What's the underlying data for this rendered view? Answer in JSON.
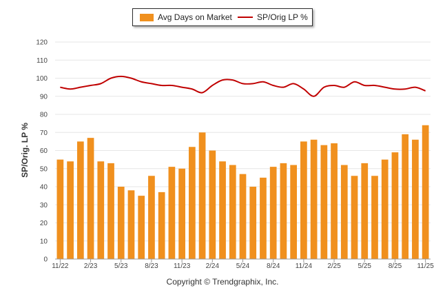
{
  "copyright": "Copyright © Trendgraphix, Inc.",
  "chart_data": {
    "type": "bar",
    "title": "",
    "xlabel": "",
    "ylabel": "SP/Orig. LP %",
    "ylim": [
      0,
      120
    ],
    "yticks": [
      0,
      10,
      20,
      30,
      40,
      50,
      60,
      70,
      80,
      90,
      100,
      110,
      120
    ],
    "grid": true,
    "legend_placement": "top-center",
    "x_tick_labels": [
      "11/22",
      "2/23",
      "5/23",
      "8/23",
      "11/23",
      "2/24",
      "5/24",
      "8/24",
      "11/24",
      "2/25",
      "5/25",
      "8/25",
      "11/25"
    ],
    "categories": [
      "11/22",
      "12/22",
      "1/23",
      "2/23",
      "3/23",
      "4/23",
      "5/23",
      "6/23",
      "7/23",
      "8/23",
      "9/23",
      "10/23",
      "11/23",
      "12/23",
      "1/24",
      "2/24",
      "3/24",
      "4/24",
      "5/24",
      "6/24",
      "7/24",
      "8/24",
      "9/24",
      "10/24",
      "11/24",
      "12/24",
      "1/25",
      "2/25",
      "3/25",
      "4/25",
      "5/25",
      "6/25",
      "7/25",
      "8/25",
      "9/25",
      "10/25",
      "11/25"
    ],
    "series": [
      {
        "name": "Avg Days on Market",
        "type": "bar",
        "color": "#F0901E",
        "values": [
          55,
          54,
          65,
          67,
          54,
          53,
          40,
          38,
          35,
          46,
          37,
          51,
          50,
          62,
          70,
          60,
          54,
          52,
          47,
          40,
          45,
          51,
          53,
          52,
          65,
          66,
          63,
          64,
          52,
          46,
          53,
          46,
          55,
          59,
          69,
          66,
          74
        ]
      },
      {
        "name": "SP/Orig LP %",
        "type": "line",
        "color": "#C00000",
        "values": [
          95,
          94,
          95,
          96,
          97,
          100,
          101,
          100,
          98,
          97,
          96,
          96,
          95,
          94,
          92,
          96,
          99,
          99,
          97,
          97,
          98,
          96,
          95,
          97,
          94,
          90,
          95,
          96,
          95,
          98,
          96,
          96,
          95,
          94,
          94,
          95,
          93
        ]
      }
    ]
  }
}
